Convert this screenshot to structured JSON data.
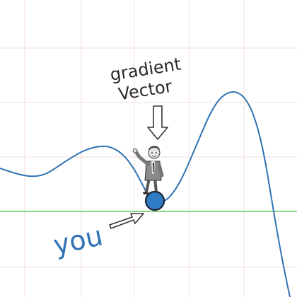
{
  "annotation": {
    "line1": "gradient",
    "line2": "Vector"
  },
  "you_label": "you",
  "colors": {
    "curve": "#2f72b5",
    "baseline": "#5cc95c",
    "grid": "#f4dede",
    "ball": "#2f7cc4",
    "you_text": "#2f72b5",
    "annotation_text": "#2a2a2a"
  }
}
